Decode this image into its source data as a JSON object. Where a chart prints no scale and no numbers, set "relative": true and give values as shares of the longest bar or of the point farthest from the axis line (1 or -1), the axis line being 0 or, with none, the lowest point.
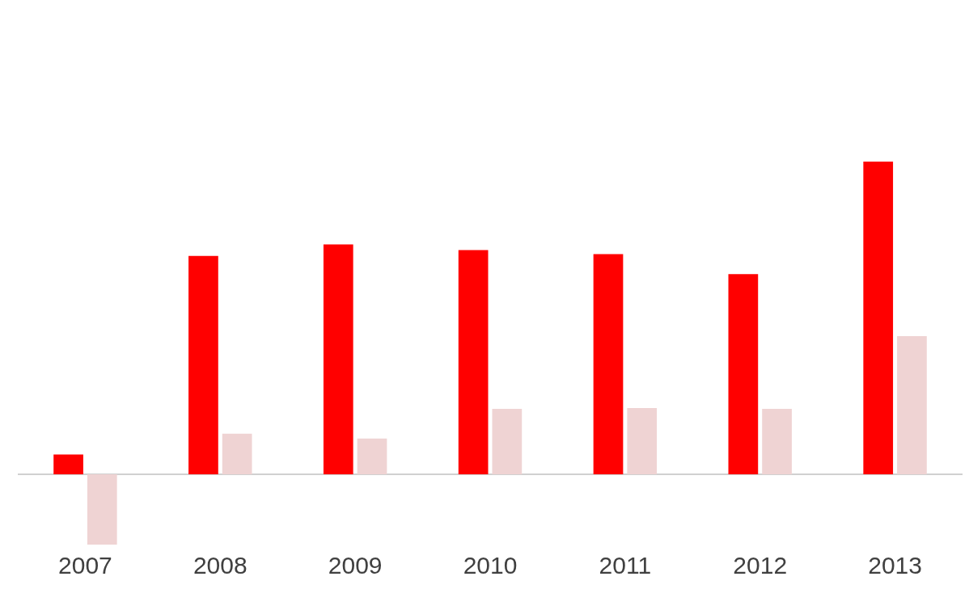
{
  "chart_data": {
    "type": "bar",
    "relative": true,
    "categories": [
      "2007",
      "2008",
      "2009",
      "2010",
      "2011",
      "2012",
      "2013"
    ],
    "series": [
      {
        "color": "#ff0000",
        "values": [
          0.063,
          0.698,
          0.735,
          0.717,
          0.704,
          0.64,
          1
        ]
      },
      {
        "color": "#efd3d3",
        "values": [
          -0.225,
          0.13,
          0.114,
          0.209,
          0.212,
          0.209,
          0.442
        ]
      }
    ],
    "grid": false,
    "legend": false
  }
}
